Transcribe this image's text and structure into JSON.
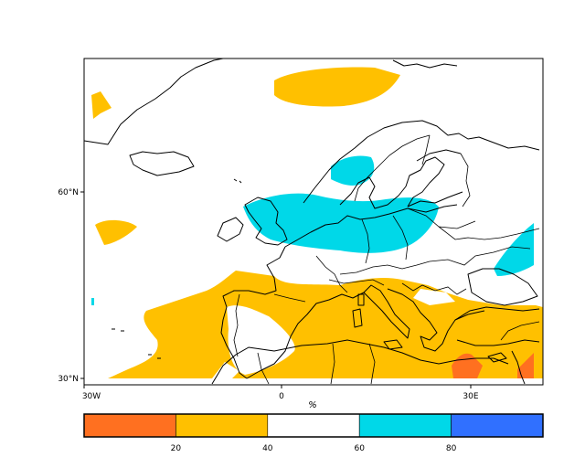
{
  "map": {
    "lon_labels": [
      "30W",
      "0",
      "30E"
    ],
    "lat_labels": [
      "60°N",
      "30°N"
    ],
    "unit": "%"
  },
  "colorbar": {
    "bins": [
      {
        "from": 0,
        "to": 20,
        "color": "#ff7020"
      },
      {
        "from": 20,
        "to": 40,
        "color": "#ffc000"
      },
      {
        "from": 40,
        "to": 60,
        "color": "#ffffff"
      },
      {
        "from": 60,
        "to": 80,
        "color": "#00d8e8"
      },
      {
        "from": 80,
        "to": 100,
        "color": "#3070ff"
      }
    ],
    "tick_labels": [
      "20",
      "40",
      "60",
      "80"
    ]
  },
  "legend_colors": {
    "below_normal_strong": "#ff7020",
    "below_normal": "#ffc000",
    "neutral": "#ffffff",
    "above_normal": "#00d8e8",
    "above_normal_strong": "#3070ff"
  }
}
